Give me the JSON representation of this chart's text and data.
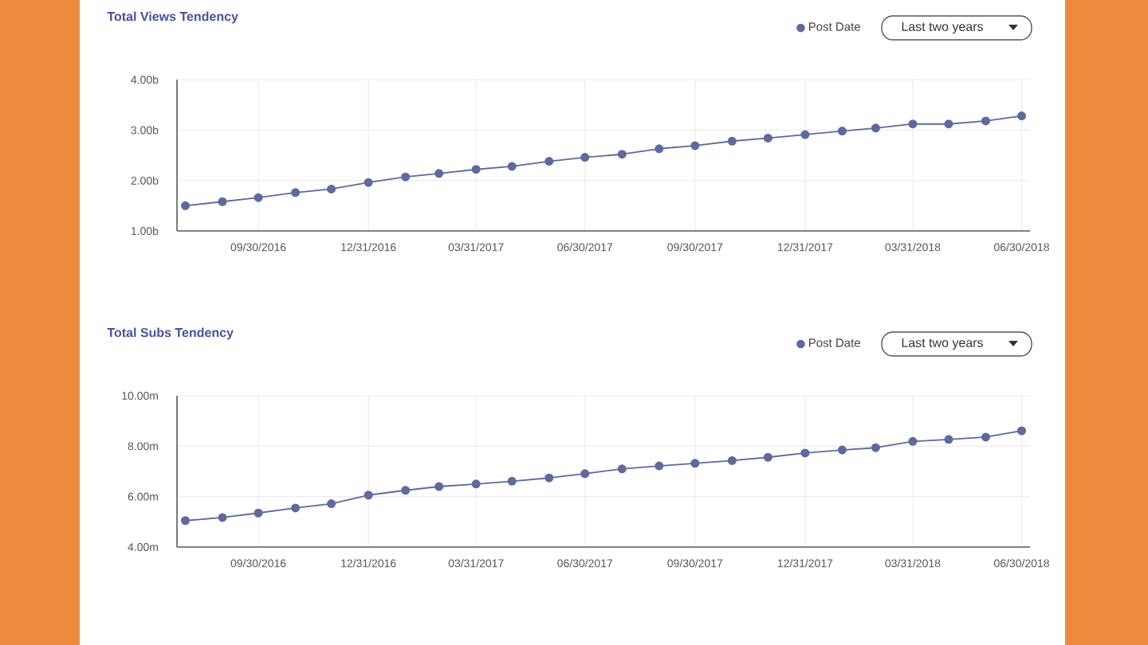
{
  "chart_data": [
    {
      "type": "line",
      "title": "Total Views Tendency",
      "x": [
        "2016-07-31",
        "2016-08-31",
        "2016-09-30",
        "2016-10-31",
        "2016-11-30",
        "2016-12-31",
        "2017-01-31",
        "2017-02-28",
        "2017-03-31",
        "2017-04-30",
        "2017-05-31",
        "2017-06-30",
        "2017-07-31",
        "2017-08-31",
        "2017-09-30",
        "2017-10-31",
        "2017-11-30",
        "2017-12-31",
        "2018-01-31",
        "2018-02-28",
        "2018-03-31",
        "2018-04-30",
        "2018-05-31",
        "2018-06-30"
      ],
      "series": [
        {
          "name": "Post Date",
          "color": "#5c6a9e",
          "values": [
            1.5,
            1.58,
            1.66,
            1.76,
            1.83,
            1.96,
            2.07,
            2.14,
            2.22,
            2.28,
            2.38,
            2.46,
            2.52,
            2.63,
            2.69,
            2.78,
            2.84,
            2.91,
            2.98,
            3.04,
            3.12,
            3.12,
            3.18,
            3.28
          ]
        }
      ],
      "xlim": [
        "2016-07-24",
        "2018-07-07"
      ],
      "xticks": [
        {
          "value": "2016-09-30",
          "label": "09/30/2016"
        },
        {
          "value": "2016-12-31",
          "label": "12/31/2016"
        },
        {
          "value": "2017-03-31",
          "label": "03/31/2017"
        },
        {
          "value": "2017-06-30",
          "label": "06/30/2017"
        },
        {
          "value": "2017-09-30",
          "label": "09/30/2017"
        },
        {
          "value": "2017-12-31",
          "label": "12/31/2017"
        },
        {
          "value": "2018-03-31",
          "label": "03/31/2018"
        },
        {
          "value": "2018-06-30",
          "label": "06/30/2018"
        }
      ],
      "ylim": [
        1,
        4
      ],
      "yticks": [
        {
          "value": 1,
          "label": "1.00b"
        },
        {
          "value": 2,
          "label": "2.00b"
        },
        {
          "value": 3,
          "label": "3.00b"
        },
        {
          "value": 4,
          "label": "4.00b"
        }
      ],
      "grid": true,
      "legend": "top right",
      "marker": "circle",
      "annotations": [
        "Last two years"
      ]
    },
    {
      "type": "line",
      "title": "Total Subs Tendency",
      "x": [
        "2016-07-31",
        "2016-08-31",
        "2016-09-30",
        "2016-10-31",
        "2016-11-30",
        "2016-12-31",
        "2017-01-31",
        "2017-02-28",
        "2017-03-31",
        "2017-04-30",
        "2017-05-31",
        "2017-06-30",
        "2017-07-31",
        "2017-08-31",
        "2017-09-30",
        "2017-10-31",
        "2017-11-30",
        "2017-12-31",
        "2018-01-31",
        "2018-02-28",
        "2018-03-31",
        "2018-04-30",
        "2018-05-31",
        "2018-06-30"
      ],
      "series": [
        {
          "name": "Post Date",
          "color": "#5c6a9e",
          "values": [
            5.05,
            5.17,
            5.35,
            5.55,
            5.72,
            6.06,
            6.25,
            6.4,
            6.5,
            6.61,
            6.74,
            6.91,
            7.1,
            7.22,
            7.32,
            7.43,
            7.56,
            7.73,
            7.85,
            7.94,
            8.19,
            8.27,
            8.36,
            8.61
          ]
        }
      ],
      "xlim": [
        "2016-07-24",
        "2018-07-07"
      ],
      "xticks": [
        {
          "value": "2016-09-30",
          "label": "09/30/2016"
        },
        {
          "value": "2016-12-31",
          "label": "12/31/2016"
        },
        {
          "value": "2017-03-31",
          "label": "03/31/2017"
        },
        {
          "value": "2017-06-30",
          "label": "06/30/2017"
        },
        {
          "value": "2017-09-30",
          "label": "09/30/2017"
        },
        {
          "value": "2017-12-31",
          "label": "12/31/2017"
        },
        {
          "value": "2018-03-31",
          "label": "03/31/2018"
        },
        {
          "value": "2018-06-30",
          "label": "06/30/2018"
        }
      ],
      "ylim": [
        4,
        10
      ],
      "yticks": [
        {
          "value": 4,
          "label": "4.00m"
        },
        {
          "value": 6,
          "label": "6.00m"
        },
        {
          "value": 8,
          "label": "8.00m"
        },
        {
          "value": 10,
          "label": "10.00m"
        }
      ],
      "grid": true,
      "legend": "top right",
      "marker": "circle",
      "annotations": [
        "Last two years"
      ]
    }
  ]
}
